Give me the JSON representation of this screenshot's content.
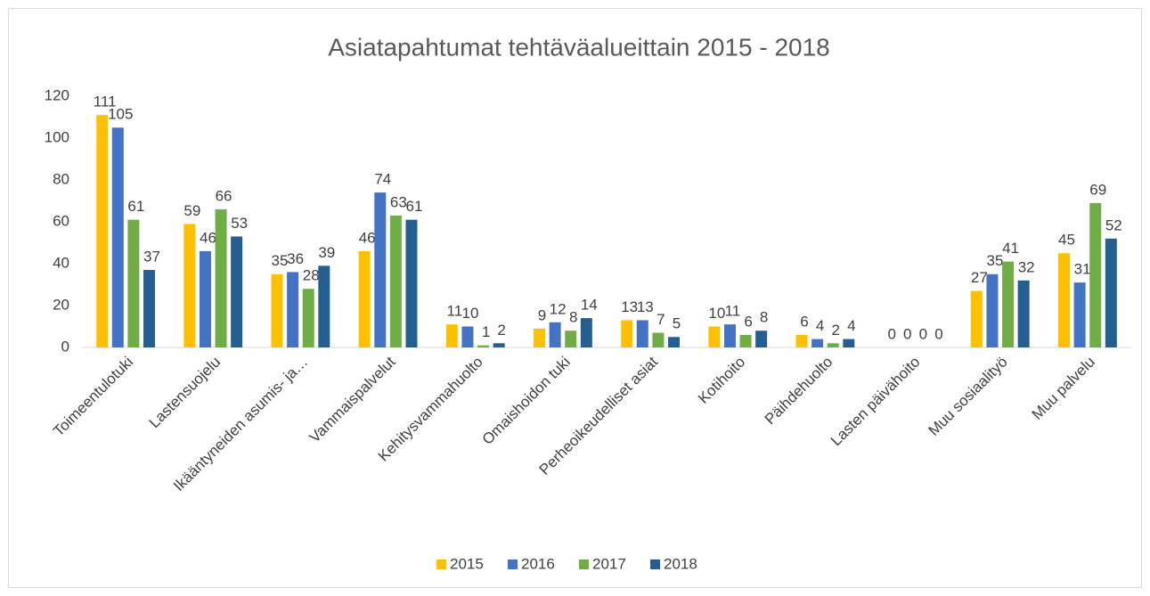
{
  "chart_data": {
    "type": "bar",
    "title": "Asiatapahtumat tehtäväalueittain 2015 - 2018",
    "categories": [
      "Toimeentulotuki",
      "Lastensuojelu",
      "Ikääntyneiden asumis- ja…",
      "Vammaispalvelut",
      "Kehitysvammahuolto",
      "Omaishoidon tuki",
      "Perheoikeudelliset asiat",
      "Kotihoito",
      "Päihdehuolto",
      "Lasten päivähoito",
      "Muu sosiaalityö",
      "Muu palvelu"
    ],
    "series": [
      {
        "name": "2015",
        "color": "#ffc000",
        "values": [
          111,
          59,
          35,
          46,
          11,
          9,
          13,
          10,
          6,
          0,
          27,
          45
        ]
      },
      {
        "name": "2016",
        "color": "#4472c4",
        "values": [
          105,
          46,
          36,
          74,
          10,
          12,
          13,
          11,
          4,
          0,
          35,
          31
        ]
      },
      {
        "name": "2017",
        "color": "#70ad47",
        "values": [
          61,
          66,
          28,
          63,
          1,
          8,
          7,
          6,
          2,
          0,
          41,
          69
        ]
      },
      {
        "name": "2018",
        "color": "#255e91",
        "values": [
          37,
          53,
          39,
          61,
          2,
          14,
          5,
          8,
          4,
          0,
          32,
          52
        ]
      }
    ],
    "ylim": [
      0,
      120
    ],
    "yticks": [
      0,
      20,
      40,
      60,
      80,
      100,
      120
    ],
    "grid": false,
    "legend": "bottom"
  }
}
